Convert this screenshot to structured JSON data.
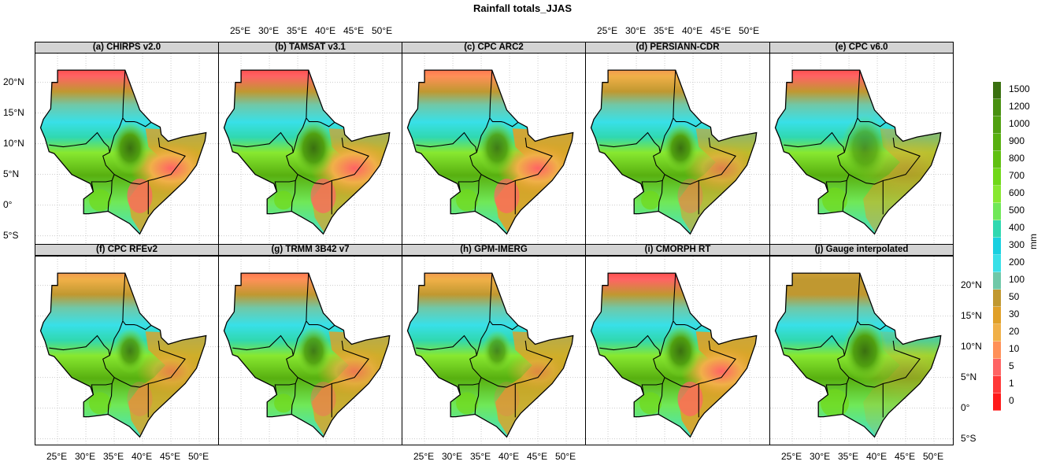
{
  "title": "Rainfall totals_JJAS",
  "panels": [
    {
      "label": "(a)  CHIRPS v2.0"
    },
    {
      "label": "(b)  TAMSAT v3.1"
    },
    {
      "label": "(c)  CPC ARC2"
    },
    {
      "label": "(d)  PERSIANN-CDR"
    },
    {
      "label": "(e)  CPC v6.0"
    },
    {
      "label": "(f)  CPC RFEv2"
    },
    {
      "label": "(g)  TRMM 3B42 v7"
    },
    {
      "label": "(h)  GPM-IMERG"
    },
    {
      "label": "(i)  CMORPH RT"
    },
    {
      "label": "(j)  Gauge interpolated"
    }
  ],
  "lon_ticks": [
    "25°E",
    "30°E",
    "35°E",
    "40°E",
    "45°E",
    "50°E"
  ],
  "lat_ticks": [
    "20°N",
    "15°N",
    "10°N",
    "5°N",
    "0°",
    "5°S"
  ],
  "legend": {
    "unit": "mm",
    "ticks": [
      "0",
      "1",
      "5",
      "10",
      "20",
      "30",
      "50",
      "100",
      "200",
      "300",
      "400",
      "500",
      "600",
      "700",
      "800",
      "900",
      "1000",
      "1200",
      "1500"
    ],
    "colors": [
      "#ff1a1a",
      "#ff3838",
      "#ff6464",
      "#ff9058",
      "#f0b048",
      "#e0a028",
      "#c09830",
      "#70c8a8",
      "#38e0e8",
      "#18d0e0",
      "#30d8b0",
      "#70e858",
      "#88e830",
      "#70d818",
      "#60c010",
      "#58b010",
      "#50a010",
      "#489010",
      "#3a7010"
    ]
  }
}
